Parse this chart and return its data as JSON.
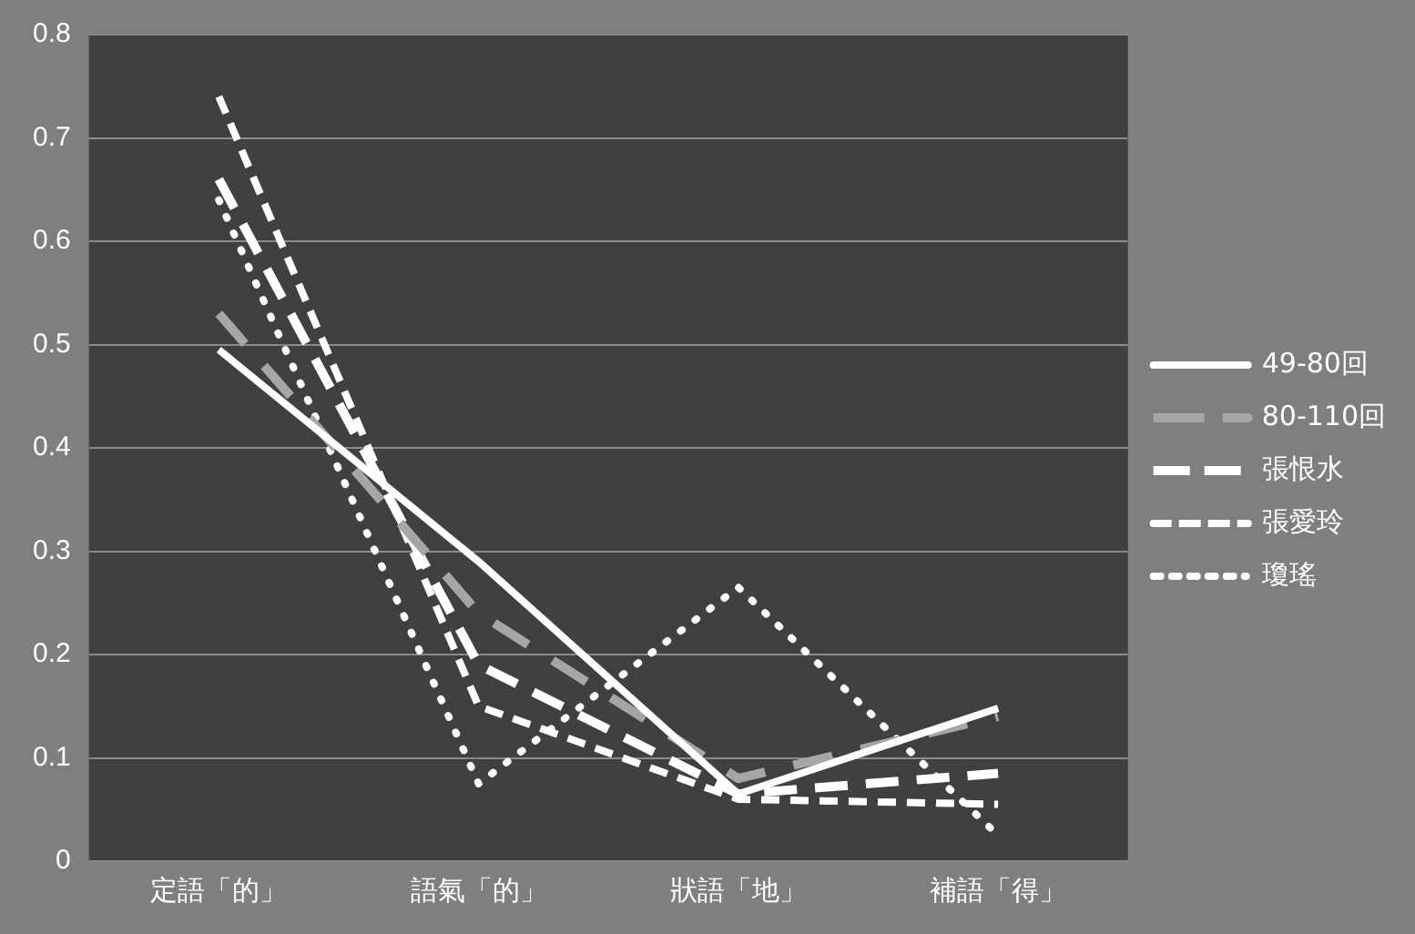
{
  "chart_data": {
    "type": "line",
    "categories": [
      "定語「的」",
      "語氣「的」",
      "狀語「地」",
      "補語「得」"
    ],
    "series": [
      {
        "name": "49-80回",
        "color": "#ffffff",
        "line_style": "solid",
        "values": [
          0.495,
          0.29,
          0.065,
          0.148
        ]
      },
      {
        "name": "80-110回",
        "color": "#a6a6a6",
        "line_style": "dashed",
        "values": [
          0.53,
          0.24,
          0.08,
          0.14
        ]
      },
      {
        "name": "張恨水",
        "color": "#ffffff",
        "line_style": "dashed",
        "values": [
          0.66,
          0.19,
          0.065,
          0.085
        ]
      },
      {
        "name": "張愛玲",
        "color": "#ffffff",
        "line_style": "dashed",
        "values": [
          0.74,
          0.15,
          0.06,
          0.055
        ]
      },
      {
        "name": "瓊瑤",
        "color": "#ffffff",
        "line_style": "dotted",
        "values": [
          0.64,
          0.075,
          0.265,
          0.025
        ]
      }
    ],
    "ylim": [
      0,
      0.8
    ],
    "yticks": [
      0,
      0.1,
      0.2,
      0.3,
      0.4,
      0.5,
      0.6,
      0.7,
      0.8
    ],
    "grid": "y",
    "legend": "right",
    "marker": "none"
  }
}
